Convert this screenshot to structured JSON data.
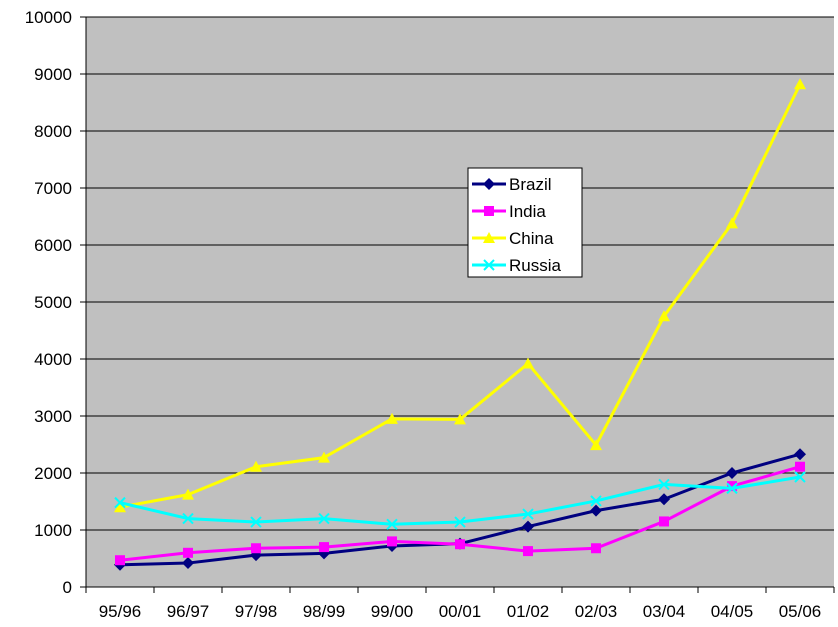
{
  "chart_data": {
    "type": "line",
    "categories": [
      "95/96",
      "96/97",
      "97/98",
      "98/99",
      "99/00",
      "00/01",
      "01/02",
      "02/03",
      "03/04",
      "04/05",
      "05/06"
    ],
    "ylim": [
      0,
      10000
    ],
    "yticks": [
      0,
      1000,
      2000,
      3000,
      4000,
      5000,
      6000,
      7000,
      8000,
      9000,
      10000
    ],
    "grid": true,
    "legend_position": "center",
    "plot_background": "#c0c0c0",
    "series": [
      {
        "name": "Brazil",
        "color": "#000080",
        "marker": "diamond",
        "values": [
          390,
          420,
          560,
          590,
          720,
          760,
          1060,
          1340,
          1540,
          2000,
          2330
        ]
      },
      {
        "name": "India",
        "color": "#ff00ff",
        "marker": "square",
        "values": [
          470,
          600,
          680,
          700,
          800,
          750,
          630,
          680,
          1150,
          1770,
          2110
        ]
      },
      {
        "name": "China",
        "color": "#ffff00",
        "marker": "triangle",
        "values": [
          1400,
          1620,
          2110,
          2270,
          2950,
          2940,
          3920,
          2490,
          4750,
          6380,
          8820
        ]
      },
      {
        "name": "Russia",
        "color": "#00ffff",
        "marker": "x",
        "values": [
          1480,
          1200,
          1140,
          1200,
          1100,
          1140,
          1280,
          1510,
          1800,
          1730,
          1930
        ]
      }
    ]
  }
}
